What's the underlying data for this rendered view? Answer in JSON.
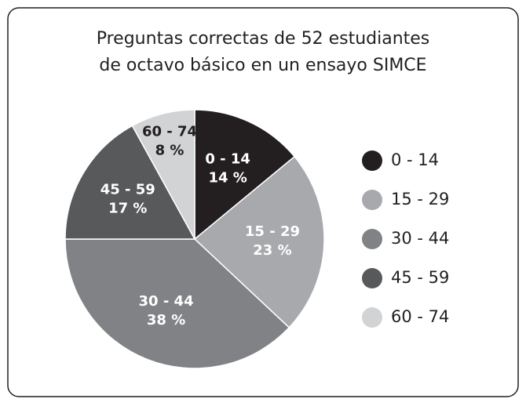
{
  "chart_data": {
    "type": "pie",
    "title": [
      "Preguntas correctas de 52 estudiantes",
      "de octavo básico en un ensayo SIMCE"
    ],
    "categories": [
      "0 - 14",
      "15 - 29",
      "30 - 44",
      "45 - 59",
      "60 - 74"
    ],
    "values": [
      14,
      23,
      38,
      17,
      8
    ],
    "value_labels": [
      "14 %",
      "23 %",
      "38 %",
      "17 %",
      "8 %"
    ],
    "colors": [
      "#231f20",
      "#a7a9ac",
      "#808285",
      "#58595b",
      "#d1d3d4"
    ],
    "legend": "right"
  }
}
